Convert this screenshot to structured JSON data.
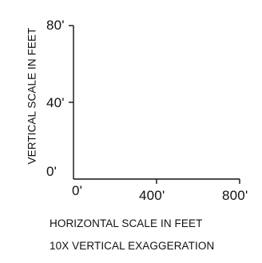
{
  "scale_bar": {
    "vertical_axis": {
      "label": "VERTICAL SCALE IN FEET",
      "ticks": [
        "80'",
        "40'",
        "0'"
      ]
    },
    "horizontal_axis": {
      "ticks": [
        "0'",
        "400'",
        "800'"
      ]
    },
    "horizontal_caption": "HORIZONTAL SCALE IN FEET",
    "exaggeration_note": "10X VERTICAL EXAGGERATION",
    "colors": {
      "ink": "#111111",
      "background": "#ffffff"
    }
  }
}
